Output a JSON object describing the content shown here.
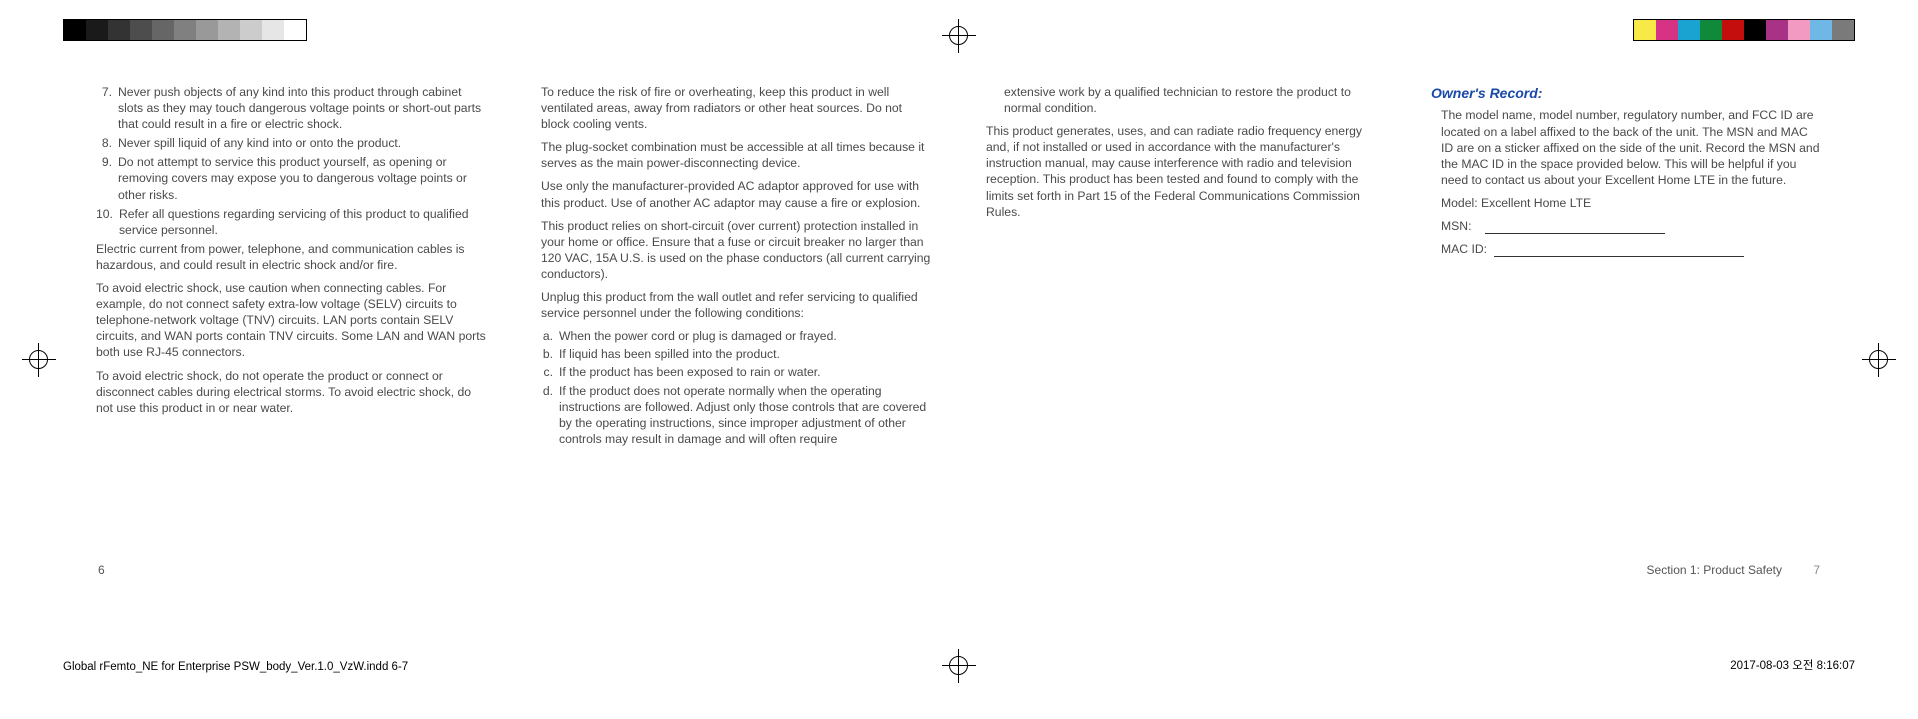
{
  "regbars": {
    "left_colors": [
      "#000000",
      "#1a1a1a",
      "#333333",
      "#4d4d4d",
      "#666666",
      "#808080",
      "#999999",
      "#b3b3b3",
      "#cccccc",
      "#e6e6e6",
      "#ffffff"
    ],
    "right_colors": [
      "#f7e948",
      "#d63384",
      "#1aa3d1",
      "#108a3a",
      "#c40e0e",
      "#000000",
      "#a83285",
      "#f29ac1",
      "#6fb8e6",
      "#7a7a7a"
    ]
  },
  "col1": {
    "list": [
      {
        "n": "7.",
        "t": "Never push objects of any kind into this product through cabinet slots as they may touch dangerous voltage points or short-out parts that could result in a fire or electric shock."
      },
      {
        "n": "8.",
        "t": "Never spill liquid of any kind into or onto the product."
      },
      {
        "n": "9.",
        "t": "Do not attempt to service this product yourself, as opening or removing covers may expose you to dangerous voltage points or other risks."
      },
      {
        "n": "10.",
        "t": "Refer all questions regarding servicing of this product to qualified service personnel."
      }
    ],
    "p1": "Electric current from power, telephone, and communication cables is hazardous, and could result in electric shock and/or fire.",
    "p2": "To avoid electric shock, use caution when connecting cables. For example, do not connect safety extra-low voltage (SELV) circuits to telephone-network voltage (TNV) circuits. LAN ports contain SELV circuits, and WAN ports contain TNV circuits. Some LAN and WAN ports both use RJ-45 connectors.",
    "p3": "To avoid electric shock, do not operate the product or connect or disconnect cables during electrical storms. To avoid electric shock, do not use this product in or near water."
  },
  "col2": {
    "p1": "To reduce the risk of fire or overheating, keep this product in well ventilated areas, away from radiators or other heat sources. Do not block cooling vents.",
    "p2": "The plug-socket combination must be accessible at all times because it serves as the main power-disconnecting device.",
    "p3": "Use only the manufacturer-provided AC adaptor approved for use with this product. Use of another AC adaptor may cause a fire or explosion.",
    "p4": "This product relies on short-circuit (over current) protection installed in your home or office. Ensure that a fuse or circuit breaker no larger than 120 VAC, 15A U.S. is used on the phase conductors (all current carrying conductors).",
    "p5": "Unplug this product from the wall outlet and refer servicing to qualified service personnel under the following conditions:",
    "list": [
      {
        "n": "a.",
        "t": "When the power cord or plug is damaged or frayed."
      },
      {
        "n": "b.",
        "t": "If liquid has been spilled into the product."
      },
      {
        "n": "c.",
        "t": "If the product has been exposed to rain or water."
      },
      {
        "n": "d.",
        "t": "If the product does not operate normally when the operating instructions are followed. Adjust only those controls that are covered by the operating instructions, since improper adjustment of other controls may result in damage and will often require"
      }
    ]
  },
  "col3": {
    "cont": "extensive work by a qualified technician to restore the product to normal condition.",
    "p1": "This product generates, uses, and can radiate radio frequency energy and, if not installed or used in accordance with the manufacturer's instruction manual, may cause interference with radio and television reception. This product has been tested and found to comply with the limits set forth in Part 15 of the Federal Communications Commission Rules."
  },
  "col4": {
    "head": "Owner's Record:",
    "p1": "The model name, model number, regulatory number, and FCC ID are located on a label affixed to the back of the unit. The MSN and MAC ID are on a sticker affixed on the side of the unit. Record the MSN and the MAC ID in the space provided below. This will be helpful if you need to contact us about your Excellent Home LTE in the future.",
    "model": "Model: Excellent Home LTE",
    "msn_label": "MSN:",
    "mac_label": "MAC ID:"
  },
  "footer": {
    "left_page": "6",
    "right_section": "Section 1: Product Safety",
    "right_page": "7",
    "indd": "Global rFemto_NE for Enterprise PSW_body_Ver.1.0_VzW.indd   6-7",
    "datetime": "2017-08-03   오전 8:16:07"
  }
}
